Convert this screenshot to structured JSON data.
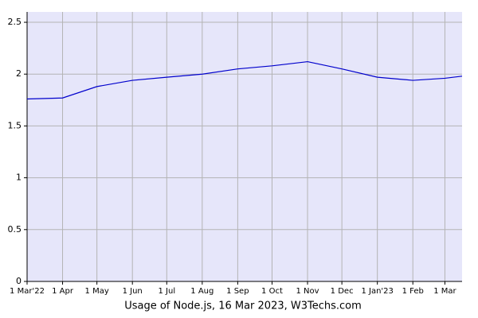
{
  "chart_data": {
    "type": "line",
    "title": "Usage of Node.js, 16 Mar 2023, W3Techs.com",
    "x": [
      "2022-03-01",
      "2022-04-01",
      "2022-05-01",
      "2022-06-01",
      "2022-07-01",
      "2022-08-01",
      "2022-09-01",
      "2022-10-01",
      "2022-11-01",
      "2022-12-01",
      "2023-01-01",
      "2023-02-01",
      "2023-03-01",
      "2023-03-16"
    ],
    "series": [
      {
        "color": "#0000cc",
        "values": [
          1.76,
          1.77,
          1.88,
          1.94,
          1.97,
          2.0,
          2.05,
          2.08,
          2.12,
          2.05,
          1.97,
          1.94,
          1.96,
          1.98
        ]
      }
    ],
    "xlim": [
      "2022-03-01",
      "2023-03-16"
    ],
    "xticks": [
      {
        "value": "2022-03-01",
        "label": "1 Mar'22"
      },
      {
        "value": "2022-04-01",
        "label": "1 Apr"
      },
      {
        "value": "2022-05-01",
        "label": "1 May"
      },
      {
        "value": "2022-06-01",
        "label": "1 Jun"
      },
      {
        "value": "2022-07-01",
        "label": "1 Jul"
      },
      {
        "value": "2022-08-01",
        "label": "1 Aug"
      },
      {
        "value": "2022-09-01",
        "label": "1 Sep"
      },
      {
        "value": "2022-10-01",
        "label": "1 Oct"
      },
      {
        "value": "2022-11-01",
        "label": "1 Nov"
      },
      {
        "value": "2022-12-01",
        "label": "1 Dec"
      },
      {
        "value": "2023-01-01",
        "label": "1 Jan'23"
      },
      {
        "value": "2023-02-01",
        "label": "1 Feb"
      },
      {
        "value": "2023-03-01",
        "label": "1 Mar"
      }
    ],
    "ylim": [
      0,
      2.6
    ],
    "yticks": [
      0,
      0.5,
      1,
      1.5,
      2,
      2.5
    ],
    "grid": true,
    "plot_background": "#e6e6fa"
  }
}
